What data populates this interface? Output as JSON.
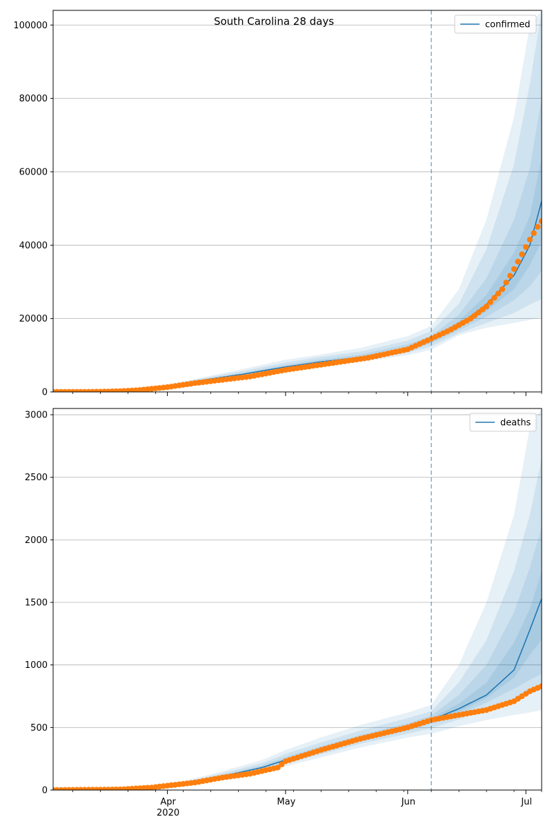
{
  "figure": {
    "title": "South Carolina 28 days"
  },
  "chart_data": [
    {
      "type": "line",
      "panel": "top",
      "title": "South Carolina 28 days",
      "legend": "top-right",
      "grid": "y",
      "x_range": [
        "2020-03-03",
        "2020-07-05"
      ],
      "x_tick_labels": [
        "Apr",
        "May",
        "Jun",
        "Jul"
      ],
      "x_tick_year": "2020",
      "x_major_ticks": [
        "2020-04-01",
        "2020-05-01",
        "2020-06-01",
        "2020-07-01"
      ],
      "ylim": [
        0,
        104000
      ],
      "yticks": [
        0,
        20000,
        40000,
        60000,
        80000,
        100000
      ],
      "ytick_labels": [
        "0",
        "20000",
        "40000",
        "60000",
        "80000",
        "100000"
      ],
      "forecast_start": "2020-06-07",
      "model_series": {
        "name": "confirmed",
        "color": "#1f77b4",
        "dates": [
          "2020-03-03",
          "2020-03-15",
          "2020-03-25",
          "2020-04-01",
          "2020-04-10",
          "2020-04-20",
          "2020-05-01",
          "2020-05-10",
          "2020-05-20",
          "2020-06-01",
          "2020-06-07",
          "2020-06-14",
          "2020-06-21",
          "2020-06-28",
          "2020-07-02",
          "2020-07-05"
        ],
        "median": [
          0,
          50,
          400,
          1500,
          3200,
          4800,
          6800,
          8200,
          9400,
          11800,
          14200,
          18200,
          23800,
          31800,
          40000,
          52000
        ],
        "bands": [
          {
            "lower": [
              0,
              40,
              300,
              1200,
              2600,
              4000,
              5800,
              7200,
              8200,
              10000,
              11500,
              15500,
              17500,
              18800,
              19600,
              20300
            ],
            "upper": [
              0,
              60,
              500,
              1900,
              4000,
              6200,
              8800,
              10200,
              12000,
              15200,
              18000,
              28000,
              47000,
              75000,
              100000,
              104000
            ]
          },
          {
            "lower": [
              0,
              45,
              340,
              1320,
              2800,
              4300,
              6200,
              7600,
              8700,
              10700,
              12400,
              16000,
              18800,
              21500,
              23800,
              25300
            ],
            "upper": [
              0,
              55,
              460,
              1720,
              3700,
              5700,
              8000,
              9600,
              11000,
              14000,
              16600,
              24000,
              39000,
              62000,
              84000,
              104000
            ]
          },
          {
            "lower": [
              0,
              47,
              370,
              1410,
              3000,
              4550,
              6500,
              7900,
              9000,
              11200,
              13200,
              16800,
              20500,
              25000,
              28800,
              33000
            ],
            "upper": [
              0,
              53,
              430,
              1600,
              3450,
              5200,
              7400,
              8900,
              10200,
              13000,
              15300,
              21000,
              31000,
              47000,
              61000,
              80000
            ]
          },
          {
            "lower": [
              0,
              49,
              390,
              1470,
              3120,
              4700,
              6700,
              8100,
              9250,
              11600,
              13800,
              17500,
              22000,
              28000,
              34500,
              41000
            ],
            "upper": [
              0,
              51,
              410,
              1540,
              3300,
              4950,
              7000,
              8450,
              9700,
              12300,
              14700,
              19300,
              26500,
              38000,
              48000,
              64000
            ]
          }
        ]
      },
      "observed_series": {
        "color": "#ff7f0e",
        "dates": [
          "2020-03-03",
          "2020-03-10",
          "2020-03-15",
          "2020-03-20",
          "2020-03-25",
          "2020-04-01",
          "2020-04-08",
          "2020-04-15",
          "2020-04-22",
          "2020-05-01",
          "2020-05-08",
          "2020-05-15",
          "2020-05-22",
          "2020-06-01",
          "2020-06-07",
          "2020-06-12",
          "2020-06-17",
          "2020-06-21",
          "2020-06-25",
          "2020-06-28",
          "2020-06-30",
          "2020-07-02",
          "2020-07-04",
          "2020-07-05"
        ],
        "values": [
          0,
          20,
          60,
          200,
          500,
          1300,
          2400,
          3300,
          4200,
          6000,
          7100,
          8200,
          9300,
          11600,
          14500,
          17000,
          20000,
          23300,
          28000,
          33500,
          37500,
          41500,
          45000,
          46500
        ]
      }
    },
    {
      "type": "line",
      "panel": "bottom",
      "legend": "top-right",
      "grid": "y",
      "x_range": [
        "2020-03-03",
        "2020-07-05"
      ],
      "ylim": [
        0,
        3050
      ],
      "yticks": [
        0,
        500,
        1000,
        1500,
        2000,
        2500,
        3000
      ],
      "ytick_labels": [
        "0",
        "500",
        "1000",
        "1500",
        "2000",
        "2500",
        "3000"
      ],
      "forecast_start": "2020-06-07",
      "model_series": {
        "name": "deaths",
        "color": "#1f77b4",
        "dates": [
          "2020-03-03",
          "2020-03-20",
          "2020-03-28",
          "2020-04-05",
          "2020-04-15",
          "2020-04-25",
          "2020-05-01",
          "2020-05-10",
          "2020-05-20",
          "2020-06-01",
          "2020-06-07",
          "2020-06-14",
          "2020-06-21",
          "2020-06-28",
          "2020-07-02",
          "2020-07-05"
        ],
        "median": [
          0,
          4,
          20,
          50,
          110,
          180,
          240,
          320,
          410,
          500,
          560,
          650,
          760,
          960,
          1280,
          1530
        ],
        "bands": [
          {
            "lower": [
              0,
              2,
              12,
              35,
              80,
              140,
              190,
              260,
              340,
              420,
              450,
              510,
              560,
              600,
              620,
              640
            ],
            "upper": [
              0,
              6,
              30,
              70,
              150,
              240,
              320,
              420,
              520,
              620,
              680,
              1000,
              1500,
              2200,
              2900,
              3050
            ]
          },
          {
            "lower": [
              0,
              3,
              15,
              40,
              90,
              155,
              210,
              285,
              370,
              450,
              495,
              565,
              640,
              720,
              770,
              800
            ],
            "upper": [
              0,
              5,
              26,
              62,
              135,
              215,
              290,
              380,
              475,
              575,
              630,
              860,
              1200,
              1750,
              2200,
              2650
            ]
          },
          {
            "lower": [
              0,
              3,
              17,
              45,
              100,
              165,
              225,
              300,
              390,
              475,
              530,
              600,
              700,
              810,
              880,
              930
            ],
            "upper": [
              0,
              5,
              23,
              56,
              122,
              197,
              265,
              350,
              440,
              535,
              595,
              760,
              1000,
              1420,
              1780,
              2100
            ]
          },
          {
            "lower": [
              0,
              4,
              19,
              48,
              106,
              174,
              234,
              312,
              402,
              490,
              548,
              625,
              735,
              900,
              1080,
              1200
            ],
            "upper": [
              0,
              4,
              21,
              52,
              114,
              186,
              248,
              330,
              420,
              512,
              575,
              690,
              860,
              1180,
              1450,
              1750
            ]
          }
        ]
      },
      "observed_series": {
        "color": "#ff7f0e",
        "dates": [
          "2020-03-03",
          "2020-03-20",
          "2020-03-28",
          "2020-04-01",
          "2020-04-08",
          "2020-04-15",
          "2020-04-22",
          "2020-04-29",
          "2020-05-01",
          "2020-05-10",
          "2020-05-20",
          "2020-06-01",
          "2020-06-07",
          "2020-06-14",
          "2020-06-21",
          "2020-06-28",
          "2020-07-02",
          "2020-07-05"
        ],
        "values": [
          0,
          5,
          20,
          35,
          60,
          100,
          130,
          180,
          230,
          320,
          410,
          500,
          560,
          600,
          640,
          710,
          790,
          830
        ]
      }
    }
  ]
}
